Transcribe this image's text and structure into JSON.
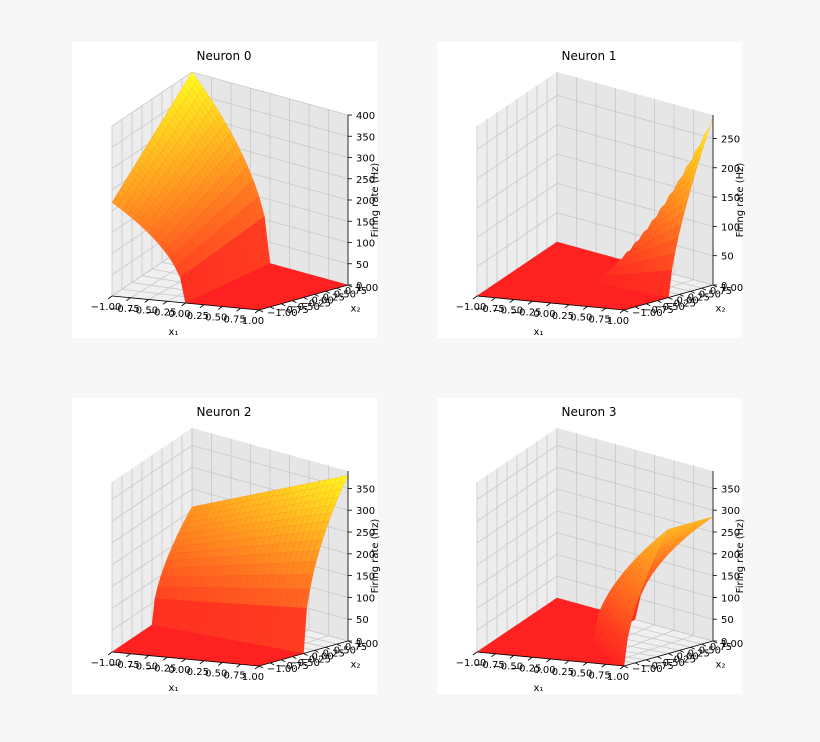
{
  "chart_data": [
    {
      "type": "surface3d",
      "title": "Neuron 0",
      "xlabel": "x₁",
      "ylabel": "x₂",
      "zlabel": "Firing rate (Hz)",
      "xlim": [
        -1,
        1
      ],
      "ylim": [
        -1,
        1
      ],
      "zlim": [
        0,
        400
      ],
      "x_ticks": [
        "−1.00",
        "−0.75",
        "−0.50",
        "−0.25",
        "0.00",
        "0.25",
        "0.50",
        "0.75",
        "1.00"
      ],
      "y_ticks": [
        "−1.00",
        "−0.75",
        "−0.50",
        "−0.25",
        "0.00",
        "0.25",
        "0.50",
        "0.75",
        "1.00"
      ],
      "z_ticks": [
        "0",
        "50",
        "100",
        "150",
        "200",
        "250",
        "300",
        "350",
        "400"
      ],
      "z_values": [
        0,
        50,
        100,
        150,
        200,
        250,
        300,
        350,
        400
      ],
      "surface": {
        "active_region": "x1 < 0",
        "zmax": 400,
        "steepness": 0.12
      },
      "colormap": [
        "#ff2020",
        "#ffff20"
      ],
      "grid": true
    },
    {
      "type": "surface3d",
      "title": "Neuron 1",
      "xlabel": "x₁",
      "ylabel": "x₂",
      "zlabel": "Firing rate (Hz)",
      "xlim": [
        -1,
        1
      ],
      "ylim": [
        -1,
        1
      ],
      "zlim": [
        0,
        290
      ],
      "x_ticks": [
        "−1.00",
        "−0.75",
        "−0.50",
        "−0.25",
        "0.00",
        "0.25",
        "0.50",
        "0.75",
        "1.00"
      ],
      "y_ticks": [
        "−1.00",
        "−0.75",
        "−0.50",
        "−0.25",
        "0.00",
        "0.25",
        "0.50",
        "0.75",
        "1.00"
      ],
      "z_ticks": [
        "0",
        "50",
        "100",
        "150",
        "200",
        "250"
      ],
      "z_values": [
        0,
        50,
        100,
        150,
        200,
        250
      ],
      "surface": {
        "active_region": "x1 > 0 and x2 > 0",
        "zmax": 285,
        "steepness": 0.02
      },
      "colormap": [
        "#ff2020",
        "#ffff20"
      ],
      "grid": true
    },
    {
      "type": "surface3d",
      "title": "Neuron 2",
      "xlabel": "x₁",
      "ylabel": "x₂",
      "zlabel": "Firing rate (Hz)",
      "xlim": [
        -1,
        1
      ],
      "ylim": [
        -1,
        1
      ],
      "zlim": [
        0,
        390
      ],
      "x_ticks": [
        "−1.00",
        "−0.75",
        "−0.50",
        "−0.25",
        "0.00",
        "0.25",
        "0.50",
        "0.75",
        "1.00"
      ],
      "y_ticks": [
        "−1.00",
        "−0.75",
        "−0.50",
        "−0.25",
        "0.00",
        "0.25",
        "0.50",
        "0.75",
        "1.00"
      ],
      "z_ticks": [
        "0",
        "50",
        "100",
        "150",
        "200",
        "250",
        "300",
        "350"
      ],
      "z_values": [
        0,
        50,
        100,
        150,
        200,
        250,
        300,
        350
      ],
      "surface": {
        "active_region": "x2 > 0",
        "zmax": 380,
        "steepness": 0.1
      },
      "colormap": [
        "#ff2020",
        "#ffff20"
      ],
      "grid": true
    },
    {
      "type": "surface3d",
      "title": "Neuron 3",
      "xlabel": "x₁",
      "ylabel": "x₂",
      "zlabel": "Firing rate (Hz)",
      "xlim": [
        -1,
        1
      ],
      "ylim": [
        -1,
        1
      ],
      "zlim": [
        0,
        390
      ],
      "x_ticks": [
        "−1.00",
        "−0.75",
        "−0.50",
        "−0.25",
        "0.00",
        "0.25",
        "0.50",
        "0.75",
        "1.00"
      ],
      "y_ticks": [
        "−1.00",
        "−0.75",
        "−0.50",
        "−0.25",
        "0.00",
        "0.25",
        "0.50",
        "0.75",
        "1.00"
      ],
      "z_ticks": [
        "0",
        "50",
        "100",
        "150",
        "200",
        "250",
        "300",
        "350"
      ],
      "z_values": [
        0,
        50,
        100,
        150,
        200,
        250,
        300,
        350
      ],
      "surface": {
        "active_region": "x1 > 0 and x2 > -x1 (upper-right corner)",
        "zmax": 380,
        "steepness": 0.08
      },
      "colormap": [
        "#ff2020",
        "#ffff20"
      ],
      "grid": true
    }
  ]
}
